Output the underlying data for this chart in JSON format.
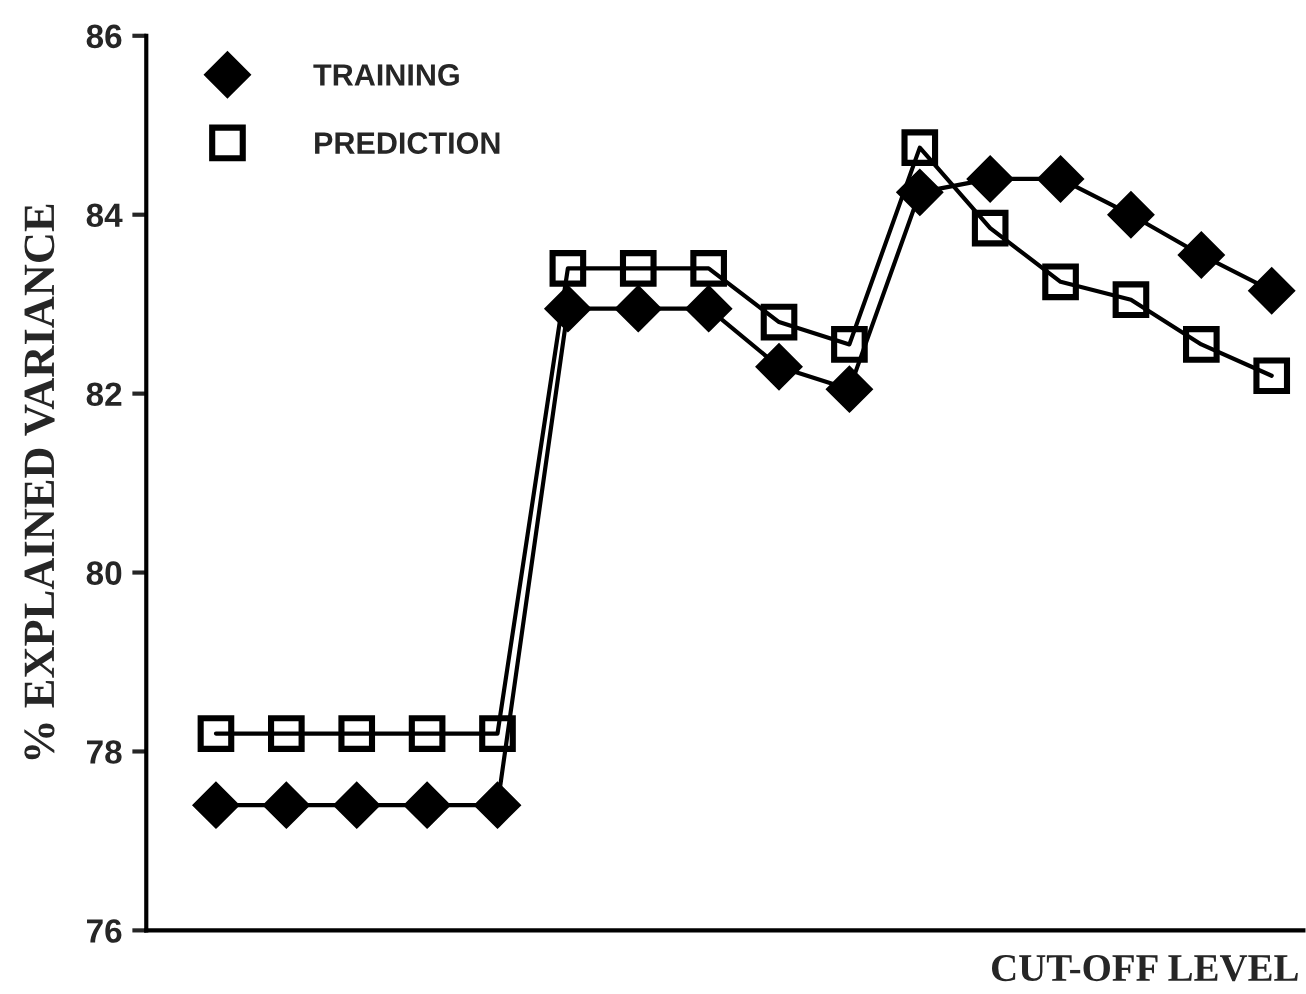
{
  "chart_data": {
    "type": "line",
    "xlabel": "CUT-OFF LEVEL",
    "ylabel": "% EXPLAINED VARIANCE",
    "categories": [
      null,
      null,
      null,
      null,
      null,
      null,
      null,
      null,
      null,
      null,
      null,
      null,
      null,
      null,
      null,
      null
    ],
    "series": [
      {
        "name": "TRAINING",
        "color": "#000000",
        "marker": "diamond",
        "values": [
          77.4,
          77.4,
          77.4,
          77.4,
          77.4,
          82.95,
          82.95,
          82.95,
          82.3,
          82.05,
          84.25,
          84.4,
          84.4,
          84.0,
          83.55,
          83.15
        ]
      },
      {
        "name": "PREDICTION",
        "color": "#000000",
        "marker": "square",
        "values": [
          78.2,
          78.2,
          78.2,
          78.2,
          78.2,
          83.4,
          83.4,
          83.4,
          82.8,
          82.55,
          84.75,
          83.85,
          83.25,
          83.05,
          82.55,
          82.2
        ]
      }
    ],
    "ylim": [
      76,
      86
    ],
    "yticks": [
      76,
      78,
      80,
      82,
      84,
      86
    ],
    "grid": false,
    "legend": "top left",
    "line_style": "solid"
  }
}
